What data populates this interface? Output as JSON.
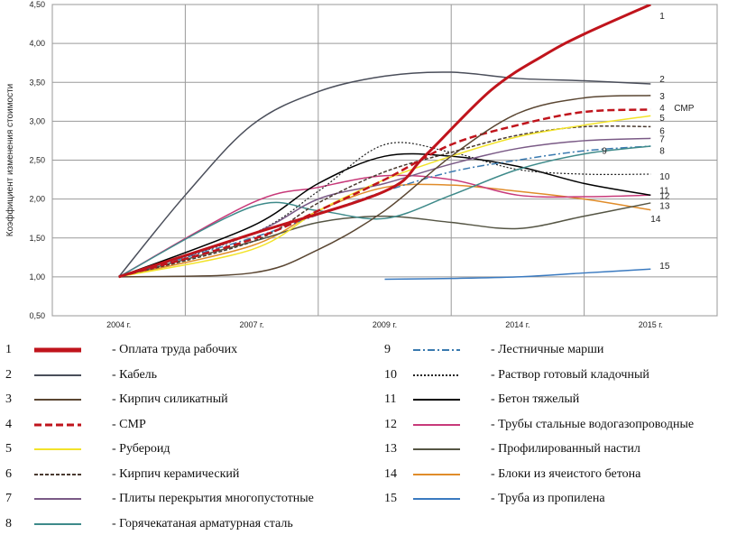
{
  "chart_data": {
    "type": "line",
    "ylabel": "Коэффициент изменения стоимости",
    "xlabel": "",
    "title": "",
    "categories": [
      "2004 г.",
      "2007 г.",
      "2009 г.",
      "2014 г.",
      "2015 г."
    ],
    "ylim": [
      0.5,
      4.5
    ],
    "yticks": [
      "0,50",
      "1,00",
      "1,50",
      "2,00",
      "2,50",
      "3,00",
      "3,50",
      "4,00",
      "4,50"
    ],
    "grid": true,
    "series": [
      {
        "id": "1",
        "name": "Оплата труда рабочих",
        "color": "#c0141c",
        "dash": "",
        "width": 3,
        "points": [
          [
            0,
            1.0
          ],
          [
            1,
            1.55
          ],
          [
            2,
            2.1
          ],
          [
            2.3,
            2.55
          ],
          [
            2.8,
            3.4
          ],
          [
            3.2,
            3.85
          ],
          [
            3.5,
            4.12
          ],
          [
            4,
            4.5
          ]
        ]
      },
      {
        "id": "2",
        "name": "Кабель",
        "color": "#4a4e5a",
        "dash": "",
        "width": 1.5,
        "points": [
          [
            0,
            1.0
          ],
          [
            0.5,
            2.05
          ],
          [
            1,
            2.95
          ],
          [
            1.5,
            3.38
          ],
          [
            2,
            3.58
          ],
          [
            2.5,
            3.63
          ],
          [
            3,
            3.55
          ],
          [
            3.5,
            3.52
          ],
          [
            4,
            3.48
          ]
        ]
      },
      {
        "id": "3",
        "name": "Кирпич силикатный",
        "color": "#5a4632",
        "dash": "",
        "width": 1.5,
        "points": [
          [
            0,
            1.0
          ],
          [
            1,
            1.05
          ],
          [
            1.5,
            1.35
          ],
          [
            2,
            1.85
          ],
          [
            2.5,
            2.55
          ],
          [
            3,
            3.1
          ],
          [
            3.5,
            3.3
          ],
          [
            4,
            3.33
          ]
        ]
      },
      {
        "id": "4",
        "name": "СМР",
        "color": "#c0141c",
        "dash": "8,4",
        "width": 2.5,
        "points": [
          [
            0,
            1.0
          ],
          [
            1,
            1.48
          ],
          [
            1.5,
            1.85
          ],
          [
            2,
            2.25
          ],
          [
            2.5,
            2.7
          ],
          [
            3,
            2.95
          ],
          [
            3.5,
            3.12
          ],
          [
            4,
            3.15
          ]
        ]
      },
      {
        "id": "5",
        "name": "Рубероид",
        "color": "#f2e32a",
        "dash": "",
        "width": 1.5,
        "points": [
          [
            0,
            1.0
          ],
          [
            1,
            1.35
          ],
          [
            1.5,
            1.85
          ],
          [
            2,
            2.25
          ],
          [
            2.5,
            2.55
          ],
          [
            3,
            2.8
          ],
          [
            3.5,
            2.95
          ],
          [
            4,
            3.07
          ]
        ]
      },
      {
        "id": "6",
        "name": "Кирпич керамический",
        "color": "#4a3a30",
        "dash": "4,2",
        "width": 1.5,
        "points": [
          [
            0,
            1.0
          ],
          [
            1,
            1.45
          ],
          [
            1.5,
            1.95
          ],
          [
            2,
            2.35
          ],
          [
            2.5,
            2.6
          ],
          [
            3,
            2.82
          ],
          [
            3.5,
            2.93
          ],
          [
            4,
            2.93
          ]
        ]
      },
      {
        "id": "7",
        "name": "Плиты перекрытия многопустотные",
        "color": "#7a5a86",
        "dash": "",
        "width": 1.5,
        "points": [
          [
            0,
            1.0
          ],
          [
            1,
            1.55
          ],
          [
            1.5,
            2.0
          ],
          [
            2,
            2.2
          ],
          [
            2.5,
            2.45
          ],
          [
            3,
            2.65
          ],
          [
            3.5,
            2.75
          ],
          [
            4,
            2.78
          ]
        ]
      },
      {
        "id": "8",
        "name": "Горячекатаная арматурная сталь",
        "color": "#3e8a8a",
        "dash": "",
        "width": 1.5,
        "points": [
          [
            0,
            1.0
          ],
          [
            1,
            1.9
          ],
          [
            1.5,
            1.85
          ],
          [
            2,
            1.75
          ],
          [
            2.5,
            2.05
          ],
          [
            3,
            2.38
          ],
          [
            3.5,
            2.58
          ],
          [
            4,
            2.68
          ]
        ]
      },
      {
        "id": "9",
        "name": "Лестничные марши",
        "color": "#3a7ab0",
        "dash": "8,3,2,3",
        "width": 1.5,
        "points": [
          [
            0,
            1.0
          ],
          [
            1,
            1.5
          ],
          [
            1.5,
            1.8
          ],
          [
            2,
            2.1
          ],
          [
            2.5,
            2.35
          ],
          [
            3,
            2.5
          ],
          [
            3.5,
            2.62
          ],
          [
            4,
            2.68
          ]
        ]
      },
      {
        "id": "10",
        "name": "Раствор готовый кладочный",
        "color": "#222222",
        "dash": "2,2",
        "width": 1.2,
        "points": [
          [
            0,
            1.0
          ],
          [
            1,
            1.55
          ],
          [
            1.5,
            2.1
          ],
          [
            2,
            2.7
          ],
          [
            2.5,
            2.6
          ],
          [
            3,
            2.38
          ],
          [
            3.5,
            2.32
          ],
          [
            4,
            2.32
          ]
        ]
      },
      {
        "id": "11",
        "name": "Бетон тяжелый",
        "color": "#000000",
        "dash": "",
        "width": 1.5,
        "points": [
          [
            0,
            1.0
          ],
          [
            1,
            1.65
          ],
          [
            1.5,
            2.2
          ],
          [
            2,
            2.55
          ],
          [
            2.5,
            2.55
          ],
          [
            3,
            2.42
          ],
          [
            3.5,
            2.2
          ],
          [
            4,
            2.05
          ]
        ]
      },
      {
        "id": "12",
        "name": "Трубы стальные водогазопроводные",
        "color": "#c83a7a",
        "dash": "",
        "width": 1.5,
        "points": [
          [
            0,
            1.0
          ],
          [
            1,
            1.95
          ],
          [
            1.5,
            2.15
          ],
          [
            2,
            2.3
          ],
          [
            2.5,
            2.25
          ],
          [
            3,
            2.05
          ],
          [
            3.5,
            2.03
          ],
          [
            4,
            2.05
          ]
        ]
      },
      {
        "id": "13",
        "name": "Профилированный настил",
        "color": "#555544",
        "dash": "",
        "width": 1.5,
        "points": [
          [
            0,
            1.0
          ],
          [
            1,
            1.45
          ],
          [
            1.5,
            1.7
          ],
          [
            2,
            1.78
          ],
          [
            2.5,
            1.7
          ],
          [
            3,
            1.62
          ],
          [
            3.5,
            1.78
          ],
          [
            4,
            1.95
          ]
        ]
      },
      {
        "id": "14",
        "name": "Блоки из ячеистого бетона",
        "color": "#e08c2a",
        "dash": "",
        "width": 1.5,
        "points": [
          [
            0,
            1.0
          ],
          [
            1,
            1.4
          ],
          [
            1.5,
            1.85
          ],
          [
            2,
            2.15
          ],
          [
            2.5,
            2.18
          ],
          [
            3,
            2.1
          ],
          [
            3.5,
            2.0
          ],
          [
            4,
            1.86
          ]
        ]
      },
      {
        "id": "15",
        "name": "Труба из пропилена",
        "color": "#3a7ac0",
        "dash": "",
        "width": 1.5,
        "points": [
          [
            2,
            0.97
          ],
          [
            2.5,
            0.98
          ],
          [
            3,
            1.0
          ],
          [
            3.5,
            1.05
          ],
          [
            4,
            1.1
          ]
        ]
      }
    ]
  },
  "end_labels": [
    {
      "text": "1",
      "y": 4.36
    },
    {
      "text": "2",
      "y": 3.55
    },
    {
      "text": "3",
      "y": 3.33
    },
    {
      "text": "4",
      "y": 3.18
    },
    {
      "text": "СМР",
      "y": 3.18,
      "dx": 16
    },
    {
      "text": "5",
      "y": 3.05
    },
    {
      "text": "6",
      "y": 2.88
    },
    {
      "text": "7",
      "y": 2.78
    },
    {
      "text": "8",
      "y": 2.63
    },
    {
      "text": "9",
      "y": 2.63,
      "dx": -64
    },
    {
      "text": "10",
      "y": 2.3
    },
    {
      "text": "11",
      "y": 2.12
    },
    {
      "text": "12",
      "y": 2.05
    },
    {
      "text": "13",
      "y": 1.92
    },
    {
      "text": "14",
      "y": 1.75,
      "dx": -10
    },
    {
      "text": "15",
      "y": 1.15
    }
  ],
  "legend": [
    {
      "num": "1",
      "label": "- Оплата труда рабочих"
    },
    {
      "num": "2",
      "label": "- Кабель"
    },
    {
      "num": "3",
      "label": "- Кирпич силикатный"
    },
    {
      "num": "4",
      "label": "- СМР"
    },
    {
      "num": "5",
      "label": "- Рубероид"
    },
    {
      "num": "6",
      "label": "- Кирпич керамический"
    },
    {
      "num": "7",
      "label": "- Плиты перекрытия многопустотные"
    },
    {
      "num": "8",
      "label": "- Горячекатаная арматурная сталь"
    },
    {
      "num": "9",
      "label": "- Лестничные марши"
    },
    {
      "num": "10",
      "label": "- Раствор готовый кладочный"
    },
    {
      "num": "11",
      "label": "- Бетон тяжелый"
    },
    {
      "num": "12",
      "label": "- Трубы стальные водогазопроводные"
    },
    {
      "num": "13",
      "label": "- Профилированный настил"
    },
    {
      "num": "14",
      "label": "- Блоки из ячеистого бетона"
    },
    {
      "num": "15",
      "label": "- Труба из пропилена"
    }
  ]
}
